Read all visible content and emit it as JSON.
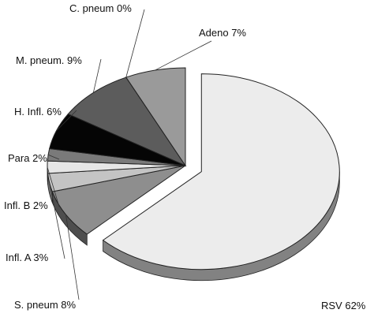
{
  "chart_data": {
    "type": "pie",
    "style": "3d-exploded",
    "slices": [
      {
        "name": "RSV",
        "value": 62,
        "label": "RSV 62%",
        "color": "#ececec",
        "exploded": true
      },
      {
        "name": "S. pneum",
        "value": 8,
        "label": "S. pneum 8%",
        "color": "#8e8e8e",
        "exploded": false
      },
      {
        "name": "Infl. A",
        "value": 3,
        "label": "Infl. A 3%",
        "color": "#c4c4c4",
        "exploded": false
      },
      {
        "name": "Infl. B",
        "value": 2,
        "label": "Infl. B 2%",
        "color": "#e6e6e6",
        "exploded": false
      },
      {
        "name": "Para",
        "value": 2,
        "label": "Para 2%",
        "color": "#7a7a7a",
        "exploded": false
      },
      {
        "name": "H. Infl.",
        "value": 6,
        "label": "H. Infl. 6%",
        "color": "#050505",
        "exploded": false
      },
      {
        "name": "M. pneum.",
        "value": 9,
        "label": "M. pneum. 9%",
        "color": "#5c5c5c",
        "exploded": false
      },
      {
        "name": "C. pneum",
        "value": 0,
        "label": "C. pneum 0%",
        "color": "#444444",
        "exploded": false
      },
      {
        "name": "Adeno",
        "value": 7,
        "label": "Adeno 7%",
        "color": "#9a9a9a",
        "exploded": false
      }
    ],
    "legend": "none"
  }
}
